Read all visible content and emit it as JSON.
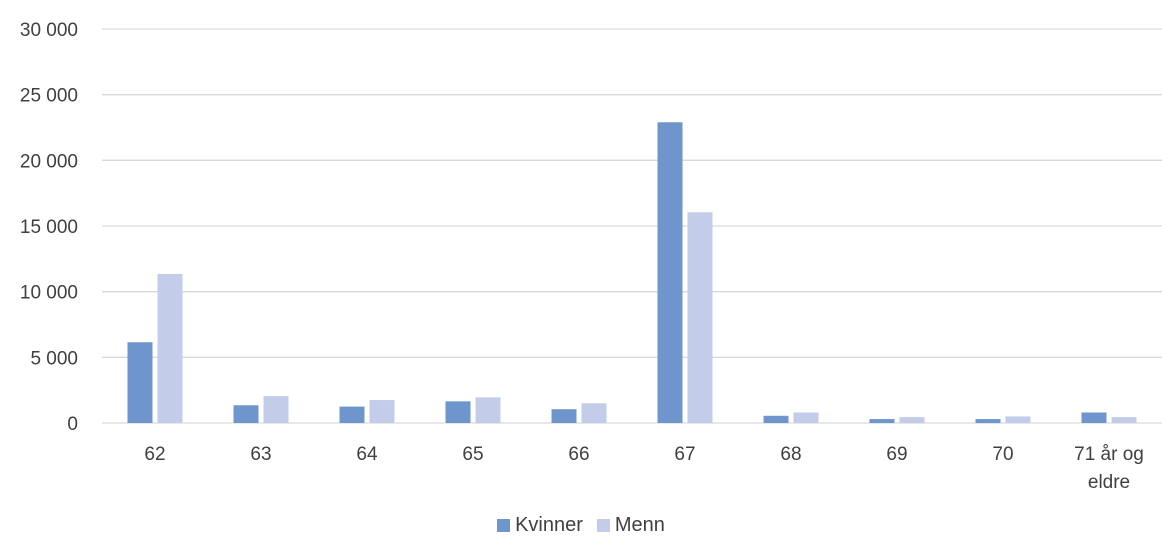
{
  "chart_data": {
    "type": "bar",
    "categories": [
      "62",
      "63",
      "64",
      "65",
      "66",
      "67",
      "68",
      "69",
      "70",
      "71 år og eldre"
    ],
    "series": [
      {
        "name": "Kvinner",
        "color": "#6e96cd",
        "values": [
          6150,
          1350,
          1250,
          1650,
          1050,
          22900,
          550,
          300,
          300,
          800
        ]
      },
      {
        "name": "Menn",
        "color": "#c3cdea",
        "values": [
          11350,
          2050,
          1750,
          1950,
          1500,
          16050,
          800,
          450,
          500,
          450
        ]
      }
    ],
    "yticks": [
      "0",
      "5 000",
      "10 000",
      "15 000",
      "20 000",
      "25 000",
      "30 000"
    ],
    "ylim": [
      0,
      30000
    ],
    "grid": true,
    "legend_position": "bottom",
    "gridline_color": "#d9d9d9"
  }
}
